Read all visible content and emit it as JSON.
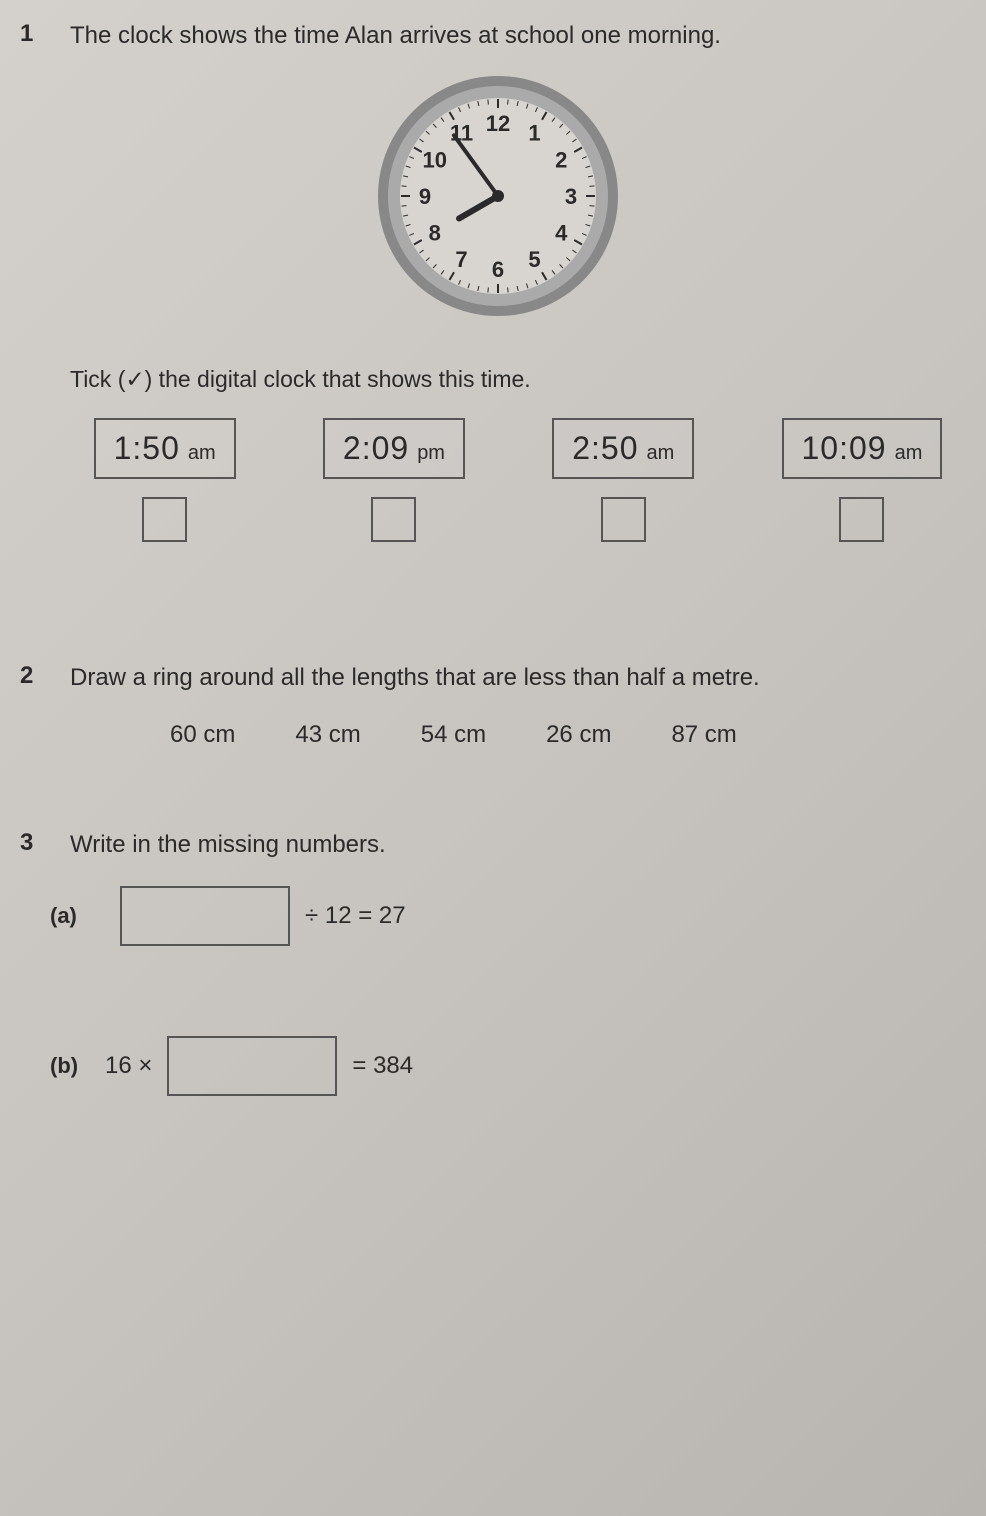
{
  "q1": {
    "number": "1",
    "text": "The clock shows the time Alan arrives at school one morning.",
    "instruction": "Tick (✓) the digital clock that shows this time.",
    "clock": {
      "numbers": [
        "12",
        "1",
        "2",
        "3",
        "4",
        "5",
        "6",
        "7",
        "8",
        "9",
        "10",
        "11"
      ],
      "outer_ring_color": "#888888",
      "inner_ring_color": "#aaaaaa",
      "face_color": "#d8d4d0",
      "hand_color": "#2a2a2a",
      "number_color": "#2a2a2a",
      "hour_angle": -120,
      "minute_angle": -36,
      "radius": 110
    },
    "options": [
      {
        "time": "1:50",
        "ampm": "am"
      },
      {
        "time": "2:09",
        "ampm": "pm"
      },
      {
        "time": "2:50",
        "ampm": "am"
      },
      {
        "time": "10:09",
        "ampm": "am"
      }
    ]
  },
  "q2": {
    "number": "2",
    "text": "Draw a ring around all the lengths that are less than half a metre.",
    "lengths": [
      "60 cm",
      "43 cm",
      "54 cm",
      "26 cm",
      "87 cm"
    ]
  },
  "q3": {
    "number": "3",
    "text": "Write in the missing numbers.",
    "parts": [
      {
        "letter": "(a)",
        "prefix": "",
        "suffix": "÷ 12 = 27"
      },
      {
        "letter": "(b)",
        "prefix": "16 ×",
        "suffix": "= 384"
      }
    ]
  },
  "colors": {
    "text": "#2a2a2a",
    "border": "#555555",
    "background": "#cccac6"
  }
}
